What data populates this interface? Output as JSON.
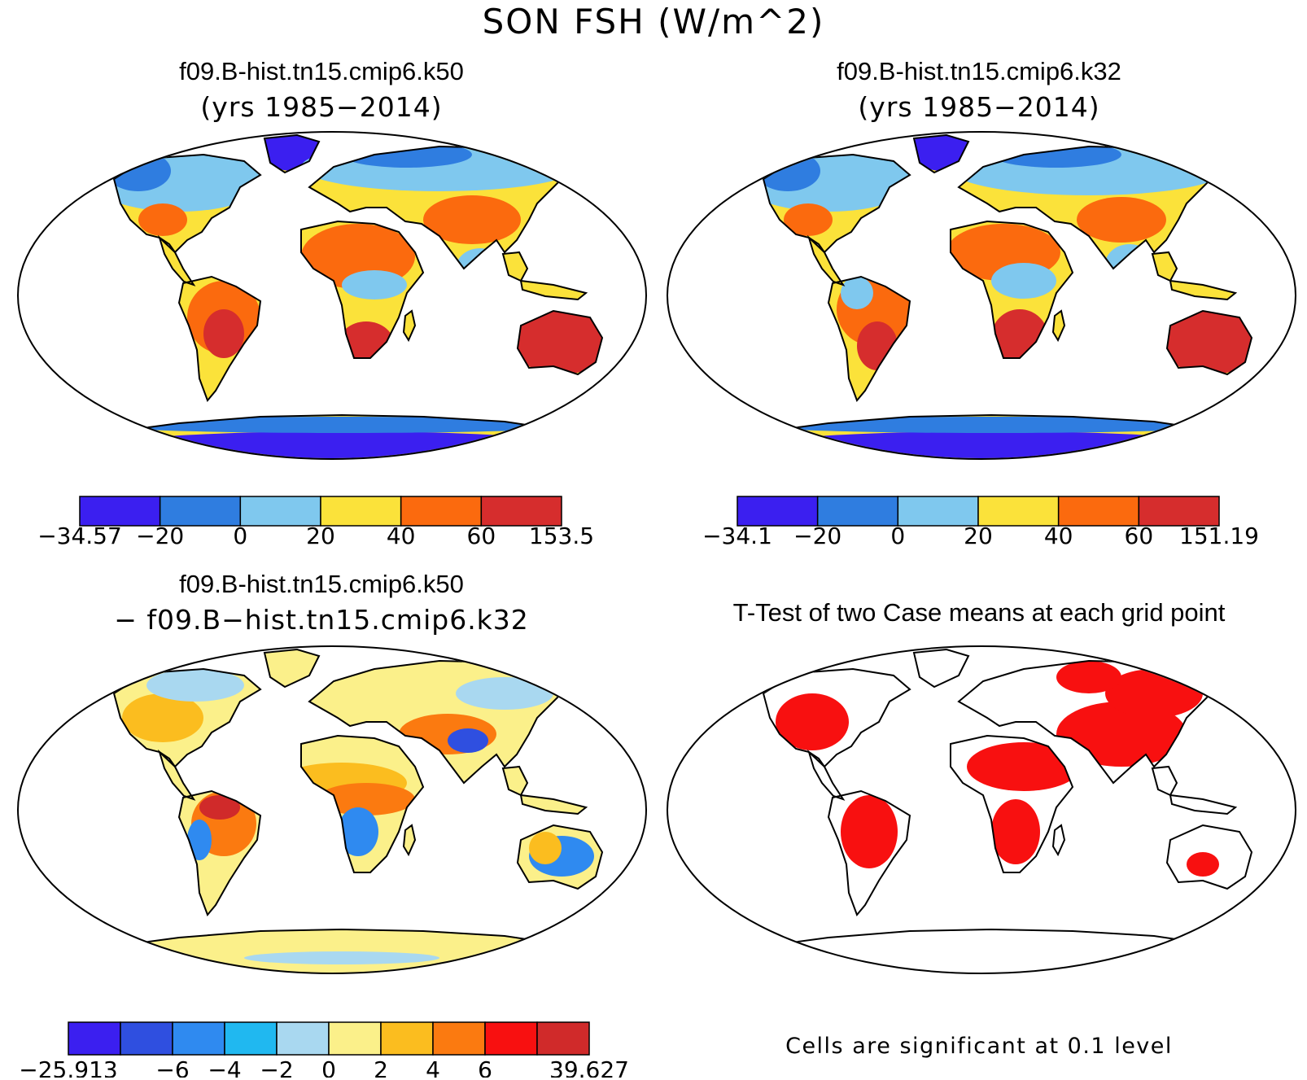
{
  "title": "SON FSH (W/m^2)",
  "panels": [
    {
      "name": "f09.B-hist.tn15.cmip6.k50",
      "subtitle": "(yrs 1985−2014)",
      "colorbar": {
        "colors": [
          "#3b1ff0",
          "#2f7de0",
          "#7fc8ee",
          "#fbe23a",
          "#fb6a0e",
          "#d62d2d"
        ],
        "labels": [
          "−34.57",
          "−20",
          "0",
          "20",
          "40",
          "60",
          "153.5"
        ]
      }
    },
    {
      "name": "f09.B-hist.tn15.cmip6.k32",
      "subtitle": "(yrs 1985−2014)",
      "colorbar": {
        "colors": [
          "#3b1ff0",
          "#2f7de0",
          "#7fc8ee",
          "#fbe23a",
          "#fb6a0e",
          "#d62d2d"
        ],
        "labels": [
          "−34.1",
          "−20",
          "0",
          "20",
          "40",
          "60",
          "151.19"
        ]
      }
    },
    {
      "name": "f09.B-hist.tn15.cmip6.k50",
      "subtitle": "− f09.B−hist.tn15.cmip6.k32",
      "colorbar": {
        "colors": [
          "#3b1ff0",
          "#2f4fe0",
          "#2f8af0",
          "#20b8f0",
          "#a9d8f0",
          "#fbf08a",
          "#fbbd1f",
          "#fb7a10",
          "#f81010",
          "#d02a2a"
        ],
        "labels": [
          "−25.913",
          "−6",
          "−4",
          "−2",
          "0",
          "2",
          "4",
          "6",
          "39.627"
        ]
      }
    },
    {
      "name": "T-Test of two Case means at each grid point",
      "note": "Cells are significant at 0.1 level"
    }
  ]
}
